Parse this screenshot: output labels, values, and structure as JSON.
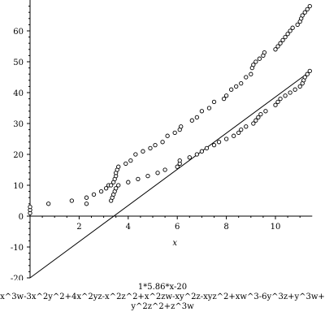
{
  "caption": {
    "line1": "1*5.86*x-20",
    "line2": "x^3w-3x^2y^2+4x^2yz-x^2z^2+x^2zw-xy^2z-xyz^2+xw^3-6y^3z+y^3w+",
    "line3": "y^2z^2+z^3w"
  },
  "chart_data": {
    "type": "scatter",
    "title": "",
    "xlabel": "x",
    "ylabel": "",
    "xlim": [
      0,
      11.5
    ],
    "ylim": [
      -20,
      70
    ],
    "x_ticks": [
      2,
      4,
      6,
      8,
      10
    ],
    "y_ticks": [
      -20,
      -10,
      0,
      10,
      20,
      30,
      40,
      50,
      60
    ],
    "grid": false,
    "line": {
      "name": "1*5.86*x-20",
      "slope": 5.86,
      "intercept": -20,
      "x": [
        0,
        11.3
      ]
    },
    "series": [
      {
        "marker": "circle",
        "points": [
          [
            0.0,
            1
          ],
          [
            0.0,
            2
          ],
          [
            0.0,
            3
          ],
          [
            0.75,
            4
          ],
          [
            1.7,
            5
          ],
          [
            2.3,
            6
          ],
          [
            2.6,
            7
          ],
          [
            2.9,
            8
          ],
          [
            3.1,
            9
          ],
          [
            3.2,
            10
          ],
          [
            3.3,
            10
          ],
          [
            3.4,
            11
          ],
          [
            3.45,
            12
          ],
          [
            3.5,
            13
          ],
          [
            3.5,
            14
          ],
          [
            3.55,
            15
          ],
          [
            3.6,
            16
          ],
          [
            3.9,
            17
          ],
          [
            4.1,
            18
          ],
          [
            4.3,
            20
          ],
          [
            4.6,
            21
          ],
          [
            4.9,
            22
          ],
          [
            5.1,
            23
          ],
          [
            5.4,
            24
          ],
          [
            5.6,
            26
          ],
          [
            5.9,
            27
          ],
          [
            6.1,
            28
          ],
          [
            6.15,
            29
          ],
          [
            6.6,
            31
          ],
          [
            6.8,
            32
          ],
          [
            7.0,
            34
          ],
          [
            7.3,
            35
          ],
          [
            7.5,
            37
          ],
          [
            7.9,
            38
          ],
          [
            8.0,
            39
          ],
          [
            8.2,
            41
          ],
          [
            8.4,
            42
          ],
          [
            8.6,
            43
          ],
          [
            8.8,
            45
          ],
          [
            9.0,
            46
          ],
          [
            9.05,
            48
          ],
          [
            9.1,
            49
          ],
          [
            9.2,
            50
          ],
          [
            9.35,
            51
          ],
          [
            9.5,
            52
          ],
          [
            9.55,
            53
          ],
          [
            10.0,
            54
          ],
          [
            10.1,
            55
          ],
          [
            10.2,
            56
          ],
          [
            10.3,
            57
          ],
          [
            10.4,
            58
          ],
          [
            10.5,
            59
          ],
          [
            10.6,
            60
          ],
          [
            10.7,
            61
          ],
          [
            10.9,
            62
          ],
          [
            11.0,
            63
          ],
          [
            11.05,
            64
          ],
          [
            11.1,
            65
          ],
          [
            11.2,
            66
          ],
          [
            11.3,
            67
          ],
          [
            11.4,
            68
          ]
        ]
      },
      {
        "marker": "circle",
        "points": [
          [
            2.3,
            4
          ],
          [
            3.3,
            5
          ],
          [
            3.35,
            6
          ],
          [
            3.4,
            7
          ],
          [
            3.45,
            8
          ],
          [
            3.5,
            9
          ],
          [
            3.6,
            10
          ],
          [
            4.0,
            11
          ],
          [
            4.4,
            12
          ],
          [
            4.8,
            13
          ],
          [
            5.2,
            14
          ],
          [
            5.5,
            15
          ],
          [
            6.0,
            16
          ],
          [
            6.1,
            17
          ],
          [
            6.1,
            18
          ],
          [
            6.5,
            19
          ],
          [
            6.8,
            20
          ],
          [
            7.0,
            21
          ],
          [
            7.2,
            22
          ],
          [
            7.5,
            23
          ],
          [
            7.7,
            24
          ],
          [
            8.0,
            25
          ],
          [
            8.3,
            26
          ],
          [
            8.5,
            27
          ],
          [
            8.6,
            28
          ],
          [
            8.8,
            29
          ],
          [
            9.1,
            30
          ],
          [
            9.2,
            31
          ],
          [
            9.3,
            32
          ],
          [
            9.4,
            33
          ],
          [
            9.6,
            34
          ],
          [
            10.0,
            36
          ],
          [
            10.1,
            37
          ],
          [
            10.2,
            38
          ],
          [
            10.4,
            39
          ],
          [
            10.6,
            40
          ],
          [
            10.8,
            41
          ],
          [
            11.0,
            42
          ],
          [
            11.1,
            43
          ],
          [
            11.15,
            44
          ],
          [
            11.2,
            45
          ],
          [
            11.3,
            46
          ],
          [
            11.4,
            47
          ]
        ]
      }
    ]
  }
}
